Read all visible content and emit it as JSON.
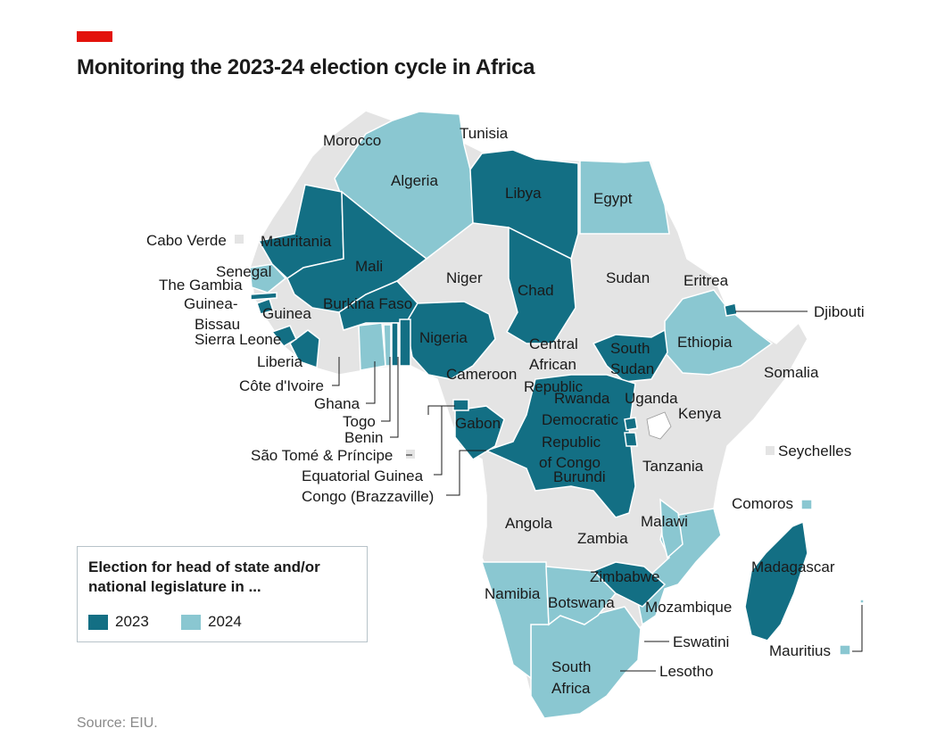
{
  "title": "Monitoring the 2023-24 election cycle in Africa",
  "source": "Source: EIU.",
  "colors": {
    "accent": "#e3120b",
    "y2023": "#136f84",
    "y2024": "#8ac7d1",
    "none": "#e4e4e4",
    "border": "#ffffff"
  },
  "legend": {
    "title_line1": "Election for head of state and/or",
    "title_line2": "national legislature in ...",
    "items": [
      {
        "label": "2023",
        "color": "#136f84"
      },
      {
        "label": "2024",
        "color": "#8ac7d1"
      }
    ]
  },
  "labels": {
    "morocco": "Morocco",
    "tunisia": "Tunisia",
    "algeria": "Algeria",
    "libya": "Libya",
    "egypt": "Egypt",
    "cabo_verde": "Cabo Verde",
    "mauritania": "Mauritania",
    "mali": "Mali",
    "niger": "Niger",
    "sudan": "Sudan",
    "eritrea": "Eritrea",
    "senegal": "Senegal",
    "the_gambia": "The Gambia",
    "guinea_bissau_1": "Guinea-",
    "guinea_bissau_2": "Bissau",
    "guinea": "Guinea",
    "burkina_faso": "Burkina Faso",
    "chad": "Chad",
    "djibouti": "Djibouti",
    "sierra_leone": "Sierra Leone",
    "nigeria": "Nigeria",
    "car_1": "Central",
    "car_2": "African",
    "car_3": "Republic",
    "south_sudan_1": "South",
    "south_sudan_2": "Sudan",
    "ethiopia": "Ethiopia",
    "liberia": "Liberia",
    "somalia": "Somalia",
    "cote_divoire": "Côte d'Ivoire",
    "cameroon": "Cameroon",
    "ghana": "Ghana",
    "uganda": "Uganda",
    "rwanda": "Rwanda",
    "kenya": "Kenya",
    "togo": "Togo",
    "gabon": "Gabon",
    "drc_1": "Democratic",
    "drc_2": "Republic",
    "drc_3": "of Congo",
    "benin": "Benin",
    "seychelles": "Seychelles",
    "sao_tome": "São Tomé & Príncipe",
    "burundi": "Burundi",
    "tanzania": "Tanzania",
    "eq_guinea": "Equatorial Guinea",
    "congo_brazzaville": "Congo (Brazzaville)",
    "comoros": "Comoros",
    "angola": "Angola",
    "malawi": "Malawi",
    "zambia": "Zambia",
    "madagascar": "Madagascar",
    "zimbabwe": "Zimbabwe",
    "namibia": "Namibia",
    "botswana": "Botswana",
    "mozambique": "Mozambique",
    "eswatini": "Eswatini",
    "mauritius": "Mauritius",
    "south_africa_1": "South",
    "south_africa_2": "Africa",
    "lesotho": "Lesotho"
  }
}
